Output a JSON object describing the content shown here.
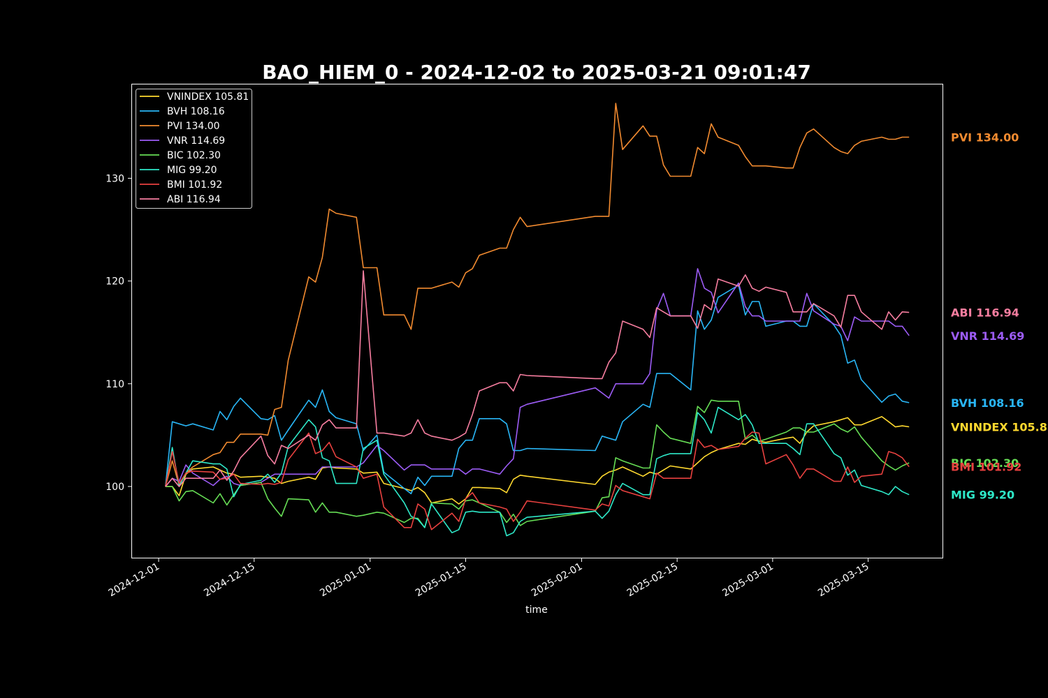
{
  "chart_data": {
    "type": "line",
    "title": "BAO_HIEM_0 - 2024-12-02 to 2025-03-21 09:01:47",
    "xlabel": "time",
    "ylabel": "",
    "x_ticks": [
      "2024-12-01",
      "2024-12-15",
      "2025-01-01",
      "2025-01-15",
      "2025-02-01",
      "2025-02-15",
      "2025-03-01",
      "2025-03-15"
    ],
    "y_ticks": [
      100,
      110,
      120,
      130
    ],
    "xlim": [
      "2024-11-27",
      "2025-03-26"
    ],
    "ylim": [
      93,
      139.2
    ],
    "grid": false,
    "legend_position": "top-left",
    "x": [
      "2024-12-02",
      "2024-12-03",
      "2024-12-04",
      "2024-12-05",
      "2024-12-06",
      "2024-12-09",
      "2024-12-10",
      "2024-12-11",
      "2024-12-12",
      "2024-12-13",
      "2024-12-16",
      "2024-12-17",
      "2024-12-18",
      "2024-12-19",
      "2024-12-20",
      "2024-12-23",
      "2024-12-24",
      "2024-12-25",
      "2024-12-26",
      "2024-12-27",
      "2024-12-30",
      "2024-12-31",
      "2025-01-02",
      "2025-01-03",
      "2025-01-06",
      "2025-01-07",
      "2025-01-08",
      "2025-01-09",
      "2025-01-10",
      "2025-01-13",
      "2025-01-14",
      "2025-01-15",
      "2025-01-16",
      "2025-01-17",
      "2025-01-20",
      "2025-01-21",
      "2025-01-22",
      "2025-01-23",
      "2025-01-24",
      "2025-02-03",
      "2025-02-04",
      "2025-02-05",
      "2025-02-06",
      "2025-02-07",
      "2025-02-10",
      "2025-02-11",
      "2025-02-12",
      "2025-02-13",
      "2025-02-14",
      "2025-02-17",
      "2025-02-18",
      "2025-02-19",
      "2025-02-20",
      "2025-02-21",
      "2025-02-24",
      "2025-02-25",
      "2025-02-26",
      "2025-02-27",
      "2025-02-28",
      "2025-03-03",
      "2025-03-04",
      "2025-03-05",
      "2025-03-06",
      "2025-03-07",
      "2025-03-10",
      "2025-03-11",
      "2025-03-12",
      "2025-03-13",
      "2025-03-14",
      "2025-03-17",
      "2025-03-18",
      "2025-03-19",
      "2025-03-20",
      "2025-03-21"
    ],
    "series": [
      {
        "name": "VNINDEX 105.81",
        "end_label": "VNINDEX 105.81",
        "color": "#ffd92f",
        "values": [
          100,
          100,
          99.1,
          101.2,
          101.7,
          101.9,
          101.6,
          101.3,
          101.2,
          100.9,
          101.0,
          100.9,
          100.8,
          100.3,
          100.5,
          100.9,
          100.7,
          101.8,
          101.9,
          101.8,
          101.7,
          101.3,
          101.4,
          100.3,
          99.8,
          99.6,
          99.9,
          99.4,
          98.4,
          98.8,
          98.3,
          98.8,
          99.9,
          99.9,
          99.8,
          99.4,
          100.7,
          101.1,
          101.0,
          100.2,
          101.0,
          101.4,
          101.6,
          101.9,
          101.0,
          101.4,
          101.2,
          101.6,
          102.0,
          101.7,
          102.3,
          102.9,
          103.3,
          103.6,
          104.2,
          104.1,
          104.6,
          104.4,
          104.3,
          104.7,
          104.8,
          104.2,
          105.3,
          105.9,
          106.3,
          106.5,
          106.7,
          106.0,
          106.0,
          106.8,
          106.3,
          105.8,
          105.9,
          105.81
        ]
      },
      {
        "name": "BVH 108.16",
        "end_label": "BVH 108.16",
        "color": "#29b6f6",
        "values": [
          100,
          106.3,
          106.1,
          105.9,
          106.1,
          105.5,
          107.3,
          106.5,
          107.8,
          108.6,
          106.6,
          106.5,
          106.9,
          104.5,
          105.5,
          108.4,
          107.7,
          109.4,
          107.3,
          106.7,
          106.1,
          103.5,
          105.0,
          101.4,
          99.8,
          99.3,
          100.9,
          100.1,
          101.0,
          101.0,
          103.7,
          104.5,
          104.5,
          106.6,
          106.6,
          106.1,
          103.5,
          103.5,
          103.7,
          103.5,
          104.9,
          104.7,
          104.5,
          106.3,
          108.0,
          107.7,
          111.0,
          111.0,
          111.0,
          109.4,
          117.1,
          115.3,
          116.2,
          118.4,
          119.6,
          116.7,
          118.0,
          118.0,
          115.6,
          116.1,
          116.1,
          115.6,
          115.6,
          117.8,
          115.7,
          114.7,
          112.0,
          112.3,
          110.4,
          108.2,
          108.8,
          109.0,
          108.3,
          108.16
        ]
      },
      {
        "name": "PVI 134.00",
        "end_label": "PVI 134.00",
        "color": "#f28b30",
        "values": [
          100,
          102.5,
          100.1,
          101.3,
          101.9,
          103.1,
          103.3,
          104.3,
          104.3,
          105.1,
          105.1,
          105.0,
          107.5,
          107.7,
          112.3,
          120.4,
          119.9,
          122.3,
          127.0,
          126.6,
          126.2,
          121.3,
          121.3,
          116.7,
          116.7,
          115.3,
          119.3,
          119.3,
          119.3,
          119.9,
          119.4,
          120.8,
          121.2,
          122.5,
          123.2,
          123.2,
          125.0,
          126.2,
          125.3,
          126.3,
          126.3,
          126.3,
          137.3,
          132.8,
          135.1,
          134.1,
          134.1,
          131.3,
          130.2,
          130.2,
          133.0,
          132.4,
          135.3,
          134.0,
          133.2,
          132.1,
          131.2,
          131.2,
          131.2,
          131.0,
          131.0,
          133.0,
          134.4,
          134.8,
          133.0,
          132.6,
          132.4,
          133.2,
          133.6,
          134.0,
          133.8,
          133.8,
          134.0,
          134.0
        ]
      },
      {
        "name": "VNR 114.69",
        "end_label": "VNR 114.69",
        "color": "#9c5cf5",
        "values": [
          100,
          100.8,
          100.5,
          102.1,
          101.3,
          100.1,
          100.7,
          101.0,
          100.3,
          100.1,
          100.4,
          100.8,
          101.2,
          101.2,
          101.2,
          101.2,
          101.2,
          101.9,
          101.9,
          101.9,
          101.9,
          102.3,
          104.0,
          103.5,
          101.6,
          102.1,
          102.1,
          102.1,
          101.7,
          101.7,
          101.7,
          101.2,
          101.7,
          101.7,
          101.2,
          102.0,
          102.7,
          107.7,
          108.0,
          109.6,
          109.1,
          108.6,
          110.0,
          110.0,
          110.0,
          111.0,
          117.2,
          118.8,
          116.6,
          116.6,
          121.2,
          119.3,
          118.9,
          116.9,
          119.8,
          117.5,
          116.6,
          116.6,
          116.1,
          116.1,
          116.1,
          116.1,
          118.8,
          117.1,
          115.8,
          115.6,
          114.2,
          116.5,
          116.1,
          116.1,
          116.1,
          115.6,
          115.6,
          114.69
        ]
      },
      {
        "name": "BIC 102.30",
        "end_label": "BIC 102.30",
        "color": "#66dd55",
        "values": [
          100,
          100,
          98.6,
          99.5,
          99.6,
          98.4,
          99.3,
          98.2,
          99.2,
          100.1,
          100.4,
          98.8,
          97.9,
          97.1,
          98.8,
          98.7,
          97.5,
          98.4,
          97.5,
          97.5,
          97.1,
          97.2,
          97.5,
          97.4,
          96.5,
          96.9,
          96.9,
          96.0,
          98.4,
          98.3,
          97.8,
          98.6,
          98.7,
          98.4,
          97.5,
          96.5,
          97.3,
          96.2,
          96.6,
          97.6,
          98.9,
          99.0,
          102.8,
          102.5,
          101.8,
          101.8,
          106.0,
          105.3,
          104.7,
          104.2,
          107.8,
          107.2,
          108.4,
          108.3,
          108.3,
          104.6,
          105.0,
          104.4,
          104.6,
          105.3,
          105.7,
          105.7,
          105.3,
          105.3,
          106.1,
          105.6,
          105.3,
          105.8,
          104.8,
          102.5,
          102.0,
          101.6,
          102.0,
          102.3
        ]
      },
      {
        "name": "MIG 99.20",
        "end_label": "MIG 99.20",
        "color": "#2ee8c8",
        "values": [
          100,
          103.8,
          100.0,
          101.3,
          102.5,
          102.2,
          102.2,
          101.7,
          99.0,
          100.2,
          100.6,
          101.2,
          100.4,
          101.3,
          103.9,
          106.5,
          105.8,
          102.8,
          102.5,
          100.3,
          100.3,
          103.7,
          104.5,
          101.2,
          98.4,
          97.1,
          96.8,
          96.0,
          98.3,
          95.5,
          95.8,
          97.5,
          97.6,
          97.5,
          97.5,
          95.2,
          95.5,
          96.6,
          97.0,
          97.6,
          96.9,
          97.6,
          99.2,
          100.3,
          99.2,
          99.2,
          102.7,
          103.0,
          103.2,
          103.2,
          107.2,
          106.5,
          105.2,
          107.7,
          106.5,
          107.0,
          106.0,
          104.2,
          104.2,
          104.2,
          103.7,
          103.1,
          106.1,
          106.1,
          103.2,
          102.8,
          101.1,
          101.6,
          100.1,
          99.5,
          99.2,
          100.0,
          99.5,
          99.2
        ]
      },
      {
        "name": "BMI 101.92",
        "end_label": "BMI 101.92",
        "color": "#e8413f",
        "values": [
          100,
          103.4,
          100.3,
          101.3,
          101.5,
          101.4,
          100.7,
          100.8,
          101.2,
          100.3,
          100.2,
          100.3,
          100.2,
          100.4,
          102.6,
          105.2,
          103.2,
          103.5,
          104.3,
          102.9,
          101.9,
          100.8,
          101.2,
          98.0,
          96.0,
          96.0,
          98.3,
          97.8,
          95.8,
          97.4,
          96.6,
          98.8,
          99.4,
          98.4,
          98.0,
          97.8,
          96.6,
          97.5,
          98.6,
          97.7,
          98.3,
          98.1,
          100.1,
          99.6,
          99.0,
          98.8,
          101.3,
          100.8,
          100.8,
          100.8,
          104.6,
          103.8,
          104.0,
          103.6,
          103.9,
          104.7,
          105.3,
          105.2,
          102.2,
          103.1,
          102.1,
          100.8,
          101.7,
          101.7,
          100.5,
          100.5,
          101.9,
          100.4,
          101.0,
          101.2,
          103.4,
          103.2,
          102.8,
          101.92
        ]
      },
      {
        "name": "ABI 116.94",
        "end_label": "ABI 116.94",
        "color": "#f77ea0",
        "values": [
          100,
          100.8,
          100.0,
          100.8,
          100.8,
          100.8,
          101.6,
          100.6,
          101.5,
          102.8,
          104.9,
          103.0,
          102.2,
          104.0,
          103.7,
          105.0,
          104.5,
          106.0,
          106.5,
          105.7,
          105.7,
          121.0,
          105.2,
          105.2,
          104.9,
          105.2,
          106.5,
          105.2,
          104.9,
          104.5,
          104.8,
          105.2,
          107.0,
          109.3,
          110.1,
          110.1,
          109.3,
          110.9,
          110.8,
          110.5,
          110.5,
          112.1,
          113.0,
          116.1,
          115.3,
          114.5,
          117.4,
          117.0,
          116.6,
          116.6,
          115.4,
          117.7,
          117.2,
          120.2,
          119.5,
          120.6,
          119.3,
          119.0,
          119.4,
          118.9,
          117.0,
          117.0,
          117.0,
          117.8,
          116.6,
          115.5,
          118.6,
          118.6,
          117.0,
          115.3,
          117.0,
          116.2,
          117.0,
          116.94
        ]
      }
    ]
  }
}
